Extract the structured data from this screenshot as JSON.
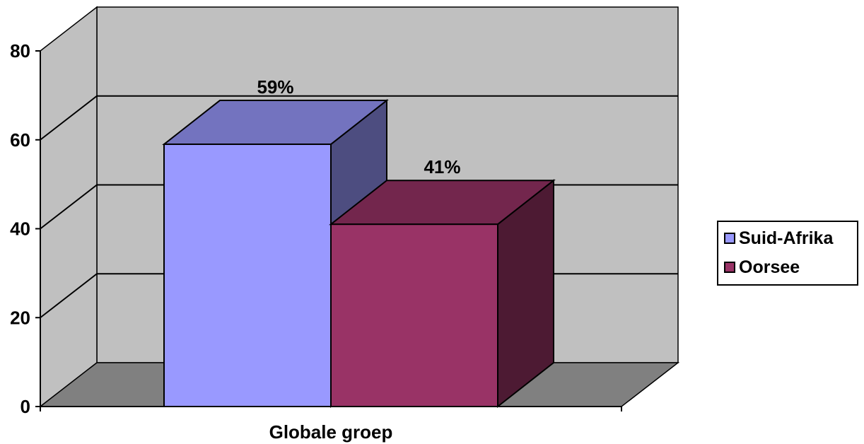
{
  "chart_data": {
    "type": "bar",
    "categories": [
      "Globale groep"
    ],
    "series": [
      {
        "name": "Suid-Afrika",
        "values": [
          59
        ],
        "data_label": "59%",
        "color": "#9999ff"
      },
      {
        "name": "Oorsee",
        "values": [
          41
        ],
        "data_label": "41%",
        "color": "#993366"
      }
    ],
    "y_ticks": [
      "0",
      "20",
      "40",
      "60",
      "80"
    ],
    "ylim": [
      0,
      80
    ],
    "xlabel": "",
    "ylabel": "",
    "title": "",
    "grid": true,
    "legend_position": "right",
    "wall_color": "#c0c0c0",
    "floor_color": "#808080"
  }
}
